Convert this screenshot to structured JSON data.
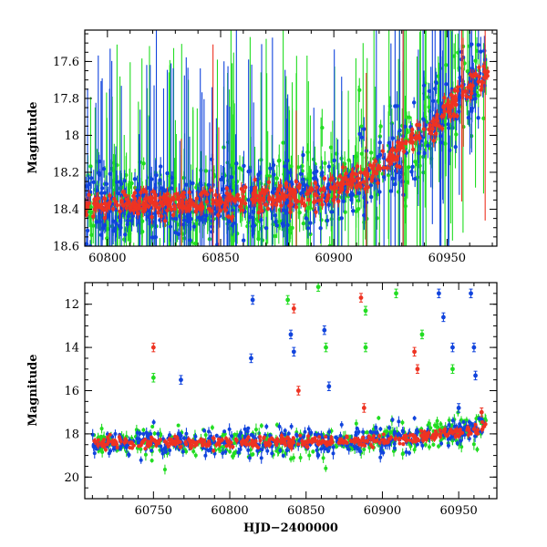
{
  "chart_data": [
    {
      "type": "scatter",
      "title": "",
      "xlabel": "",
      "ylabel": "Magnitude",
      "xlim": [
        60790,
        60972
      ],
      "ylim": [
        18.6,
        17.43
      ],
      "y_inverted": true,
      "grid": false,
      "error_bars": true,
      "xticks": [
        60800,
        60850,
        60900,
        60950
      ],
      "yticks": [
        17.6,
        17.8,
        18,
        18.2,
        18.4,
        18.6
      ],
      "trend": {
        "x": [
          60790,
          60800,
          60820,
          60840,
          60860,
          60880,
          60900,
          60915,
          60925,
          60935,
          60945,
          60955,
          60962,
          60968
        ],
        "y": [
          18.39,
          18.38,
          18.37,
          18.36,
          18.35,
          18.33,
          18.29,
          18.22,
          18.13,
          18.03,
          17.92,
          17.8,
          17.7,
          17.67
        ]
      },
      "series": [
        {
          "name": "",
          "color": "#22dd22",
          "scatter": 0.12,
          "err": 0.08,
          "spike_frac": 0.2
        },
        {
          "name": "",
          "color": "#1144dd",
          "scatter": 0.1,
          "err": 0.06,
          "spike_frac": 0.16
        },
        {
          "name": "",
          "color": "#ee3322",
          "scatter": 0.035,
          "err": 0.03,
          "spike_frac": 0.02
        }
      ]
    },
    {
      "type": "scatter",
      "title": "",
      "xlabel": "HJD−2400000",
      "ylabel": "Magnitude",
      "xlim": [
        60705,
        60975
      ],
      "ylim": [
        21,
        11
      ],
      "y_inverted": true,
      "grid": false,
      "error_bars": true,
      "xticks": [
        60750,
        60800,
        60850,
        60900,
        60950
      ],
      "yticks": [
        12,
        14,
        16,
        18,
        20
      ],
      "trend": {
        "x": [
          60710,
          60750,
          60800,
          60850,
          60880,
          60900,
          60920,
          60940,
          60955,
          60968
        ],
        "y": [
          18.4,
          18.4,
          18.38,
          18.36,
          18.34,
          18.3,
          18.2,
          18.0,
          17.85,
          17.7
        ]
      },
      "series": [
        {
          "name": "",
          "color": "#22dd22",
          "scatter": 0.35,
          "err": 0.2
        },
        {
          "name": "",
          "color": "#1144dd",
          "scatter": 0.3,
          "err": 0.2
        },
        {
          "name": "",
          "color": "#ee3322",
          "scatter": 0.12,
          "err": 0.12
        }
      ],
      "outliers": [
        {
          "x": 60750,
          "y": 14.0,
          "color": "#ee3322"
        },
        {
          "x": 60750,
          "y": 15.4,
          "color": "#22dd22"
        },
        {
          "x": 60768,
          "y": 15.5,
          "color": "#1144dd"
        },
        {
          "x": 60815,
          "y": 11.8,
          "color": "#1144dd"
        },
        {
          "x": 60814,
          "y": 14.5,
          "color": "#1144dd"
        },
        {
          "x": 60838,
          "y": 11.8,
          "color": "#22dd22"
        },
        {
          "x": 60842,
          "y": 12.2,
          "color": "#ee3322"
        },
        {
          "x": 60840,
          "y": 13.4,
          "color": "#1144dd"
        },
        {
          "x": 60842,
          "y": 14.2,
          "color": "#1144dd"
        },
        {
          "x": 60845,
          "y": 16.0,
          "color": "#ee3322"
        },
        {
          "x": 60858,
          "y": 11.2,
          "color": "#22dd22"
        },
        {
          "x": 60862,
          "y": 13.2,
          "color": "#1144dd"
        },
        {
          "x": 60863,
          "y": 14.0,
          "color": "#22dd22"
        },
        {
          "x": 60865,
          "y": 15.8,
          "color": "#1144dd"
        },
        {
          "x": 60886,
          "y": 11.7,
          "color": "#ee3322"
        },
        {
          "x": 60889,
          "y": 12.3,
          "color": "#22dd22"
        },
        {
          "x": 60889,
          "y": 14.0,
          "color": "#22dd22"
        },
        {
          "x": 60888,
          "y": 16.8,
          "color": "#ee3322"
        },
        {
          "x": 60909,
          "y": 11.5,
          "color": "#22dd22"
        },
        {
          "x": 60921,
          "y": 14.2,
          "color": "#ee3322"
        },
        {
          "x": 60926,
          "y": 13.4,
          "color": "#22dd22"
        },
        {
          "x": 60923,
          "y": 15.0,
          "color": "#ee3322"
        },
        {
          "x": 60937,
          "y": 11.5,
          "color": "#1144dd"
        },
        {
          "x": 60940,
          "y": 12.6,
          "color": "#1144dd"
        },
        {
          "x": 60946,
          "y": 14.0,
          "color": "#1144dd"
        },
        {
          "x": 60946,
          "y": 15.0,
          "color": "#22dd22"
        },
        {
          "x": 60950,
          "y": 16.8,
          "color": "#1144dd"
        },
        {
          "x": 60958,
          "y": 11.5,
          "color": "#1144dd"
        },
        {
          "x": 60960,
          "y": 14.0,
          "color": "#1144dd"
        },
        {
          "x": 60961,
          "y": 15.3,
          "color": "#1144dd"
        },
        {
          "x": 60965,
          "y": 17.0,
          "color": "#ee3322"
        }
      ]
    }
  ]
}
